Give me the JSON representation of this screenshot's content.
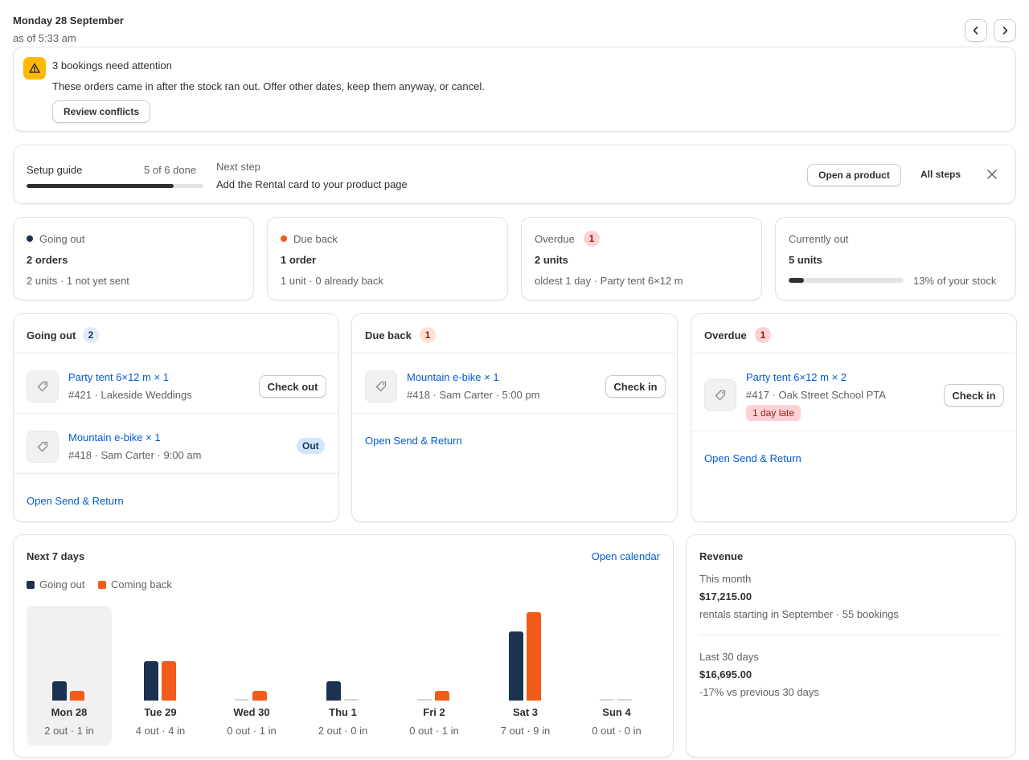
{
  "header": {
    "date": "Monday 28 September",
    "as_of": "as of 5:33 am"
  },
  "alert": {
    "title": "3 bookings need attention",
    "message": "These orders came in after the stock ran out. Offer other dates, keep them anyway, or cancel.",
    "button": "Review conflicts",
    "icon": "warning-icon"
  },
  "setup": {
    "title": "Setup guide",
    "progress_text": "5 of 6 done",
    "progress_fraction": 0.833,
    "next_label": "Next step",
    "next_text": "Add the Rental card to your product page",
    "open_button": "Open a product",
    "all_steps": "All steps"
  },
  "stats": {
    "going_out": {
      "label": "Going out",
      "value": "2 orders",
      "detail": "2 units · 1 not yet sent",
      "color": "#1b3350"
    },
    "due_back": {
      "label": "Due back",
      "value": "1 order",
      "detail": "1 unit · 0 already back",
      "color": "#f25c19"
    },
    "overdue": {
      "label": "Overdue",
      "badge": "1",
      "value": "2 units",
      "detail": "oldest 1 day · Party tent 6×12 m"
    },
    "currently_out": {
      "label": "Currently out",
      "value": "5 units",
      "percent_text": "13% of your stock",
      "fraction": 0.13
    }
  },
  "panels": {
    "going_out": {
      "title": "Going out",
      "count": "2",
      "items": [
        {
          "name": "Party tent 6×12 m × 1",
          "detail": "#421 · Lakeside Weddings",
          "action": "Check out"
        },
        {
          "name": "Mountain e-bike × 1",
          "detail": "#418 · Sam Carter · 9:00 am",
          "status": "Out"
        }
      ],
      "link": "Open Send & Return"
    },
    "due_back": {
      "title": "Due back",
      "count": "1",
      "items": [
        {
          "name": "Mountain e-bike × 1",
          "detail": "#418 · Sam Carter · 5:00 pm",
          "action": "Check in"
        }
      ],
      "link": "Open Send & Return"
    },
    "overdue": {
      "title": "Overdue",
      "count": "1",
      "items": [
        {
          "name": "Party tent 6×12 m × 2",
          "detail": "#417 · Oak Street School PTA",
          "late": "1 day late",
          "action": "Check in"
        }
      ],
      "link": "Open Send & Return"
    }
  },
  "next7": {
    "title": "Next 7 days",
    "link": "Open calendar",
    "legend_out": "Going out",
    "legend_back": "Coming back",
    "color_out": "#1b3350",
    "color_back": "#f25c19"
  },
  "chart_data": {
    "type": "bar",
    "categories": [
      "Mon 28",
      "Tue 29",
      "Wed 30",
      "Thu 1",
      "Fri 2",
      "Sat 3",
      "Sun 4"
    ],
    "series": [
      {
        "name": "Going out",
        "values": [
          2,
          4,
          0,
          2,
          0,
          7,
          0
        ]
      },
      {
        "name": "Coming back",
        "values": [
          1,
          4,
          1,
          0,
          1,
          9,
          0
        ]
      }
    ],
    "day_labels": [
      "2 out · 1 in",
      "4 out · 4 in",
      "0 out · 1 in",
      "2 out · 0 in",
      "0 out · 1 in",
      "7 out · 9 in",
      "0 out · 0 in"
    ],
    "highlighted": "Mon 28"
  },
  "revenue": {
    "title": "Revenue",
    "month_label": "This month",
    "month_value": "$17,215.00",
    "month_detail": "rentals starting in September · 55 bookings",
    "last30_label": "Last 30 days",
    "last30_value": "$16,695.00",
    "last30_detail": "-17% vs previous 30 days"
  }
}
